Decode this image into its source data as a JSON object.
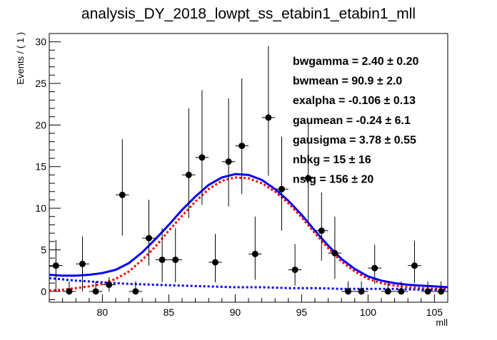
{
  "chart_data": {
    "type": "scatter",
    "title": "analysis_DY_2018_lowpt_ss_etabin1_etabin1_mll",
    "xlabel": "mll",
    "ylabel": "Events / ( 1 )",
    "xlim": [
      76,
      106
    ],
    "ylim": [
      -1.3,
      31
    ],
    "x_ticks": [
      80,
      85,
      90,
      95,
      100,
      105
    ],
    "y_ticks": [
      0,
      5,
      10,
      15,
      20,
      25,
      30
    ],
    "grid": false,
    "legend": "none",
    "fit_parameters": [
      {
        "name": "bwgamma",
        "value": "2.40",
        "error": "0.20"
      },
      {
        "name": "bwmean",
        "value": "90.9",
        "error": "2.0"
      },
      {
        "name": "exalpha",
        "value": "-0.106",
        "error": "0.13"
      },
      {
        "name": "gaumean",
        "value": "-0.24",
        "error": "6.1"
      },
      {
        "name": "gausigma",
        "value": "3.78",
        "error": "0.55"
      },
      {
        "name": "nbkg",
        "value": "15",
        "error": "16"
      },
      {
        "name": "nsig",
        "value": "156",
        "error": "20"
      }
    ],
    "data_points": {
      "x": [
        76.5,
        77.5,
        78.5,
        79.5,
        80.5,
        81.5,
        82.5,
        83.5,
        84.5,
        85.5,
        86.5,
        87.5,
        88.5,
        89.5,
        90.5,
        91.5,
        92.5,
        93.5,
        94.5,
        95.5,
        96.5,
        97.5,
        98.5,
        99.5,
        100.5,
        101.5,
        102.5,
        103.5,
        104.5,
        105.5
      ],
      "y": [
        3.1,
        0,
        3.3,
        0,
        0.8,
        11.6,
        0,
        6.4,
        3.8,
        3.8,
        14.0,
        16.1,
        3.5,
        15.6,
        17.5,
        4.5,
        20.9,
        12.3,
        2.6,
        13.6,
        7.3,
        4.6,
        0,
        0,
        2.8,
        0,
        0,
        3.1,
        0,
        0
      ],
      "err_lo": [
        3.1,
        0,
        3.3,
        0,
        0.8,
        4.9,
        0,
        3.3,
        2.7,
        2.7,
        5.2,
        5.7,
        2.4,
        5.4,
        5.8,
        3.1,
        7.0,
        5.0,
        1.9,
        5.3,
        3.6,
        3.1,
        0,
        0,
        1.9,
        0,
        0,
        2.1,
        0,
        0
      ],
      "err_hi": [
        3.1,
        1.2,
        3.3,
        1.2,
        0.9,
        6.7,
        1.2,
        4.6,
        3.8,
        3.8,
        8.0,
        8.1,
        3.4,
        7.6,
        8.1,
        4.5,
        8.6,
        6.3,
        3.1,
        6.7,
        4.6,
        4.4,
        1.2,
        1.2,
        2.8,
        1.2,
        1.2,
        3.0,
        1.2,
        1.2
      ]
    },
    "series": [
      {
        "type": "line",
        "style": "solid",
        "color": "#0000ff",
        "x": [
          76,
          77,
          78,
          79,
          80,
          81,
          82,
          83,
          84,
          85,
          86,
          87,
          88,
          89,
          90,
          91,
          92,
          93,
          94,
          95,
          96,
          97,
          98,
          99,
          100,
          101,
          102,
          103,
          104,
          105,
          106
        ],
        "y": [
          2.0,
          1.9,
          1.9,
          2.0,
          2.2,
          2.6,
          3.4,
          4.7,
          6.3,
          8.0,
          9.8,
          11.4,
          12.8,
          13.7,
          14.1,
          14.0,
          13.4,
          12.3,
          10.9,
          9.2,
          7.3,
          5.5,
          3.9,
          2.7,
          1.8,
          1.3,
          1.0,
          0.8,
          0.7,
          0.6,
          0.5
        ]
      },
      {
        "type": "line",
        "style": "dotted",
        "color": "#ff0000",
        "x": [
          76,
          77,
          78,
          79,
          80,
          81,
          82,
          83,
          84,
          85,
          86,
          87,
          88,
          89,
          90,
          91,
          92,
          93,
          94,
          95,
          96,
          97,
          98,
          99,
          100,
          101,
          102,
          103,
          104,
          105,
          106
        ],
        "y": [
          0.1,
          0.2,
          0.4,
          0.6,
          0.9,
          1.5,
          2.4,
          3.8,
          5.4,
          7.3,
          9.1,
          10.8,
          12.3,
          13.3,
          13.7,
          13.6,
          13.0,
          12.0,
          10.6,
          8.9,
          7.0,
          5.2,
          3.6,
          2.4,
          1.5,
          1.0,
          0.7,
          0.5,
          0.4,
          0.3,
          0.3
        ]
      },
      {
        "type": "line",
        "style": "dotted",
        "color": "#0000ff",
        "x": [
          76,
          78,
          80,
          82,
          84,
          86,
          88,
          90,
          92,
          94,
          96,
          98,
          100,
          102,
          104,
          106
        ],
        "y": [
          1.6,
          1.3,
          1.1,
          0.9,
          0.8,
          0.7,
          0.6,
          0.5,
          0.5,
          0.4,
          0.4,
          0.3,
          0.3,
          0.3,
          0.2,
          0.2
        ]
      }
    ]
  }
}
